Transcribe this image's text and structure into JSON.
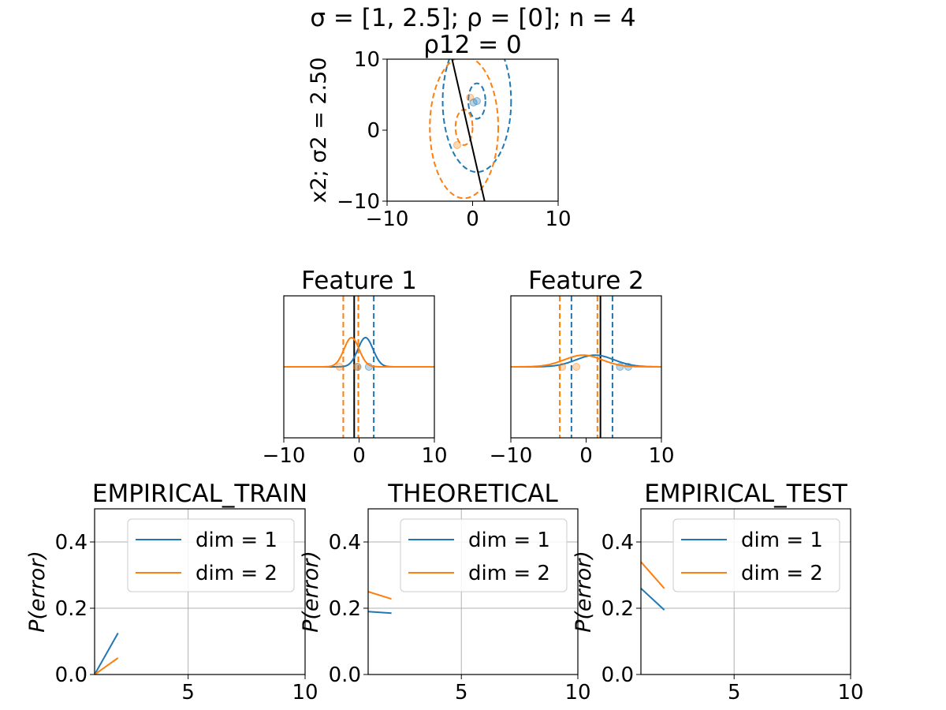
{
  "figure": {
    "suptitle": "σ = [1, 2.5]; ρ = [0]; n = 4",
    "background": "#ffffff"
  },
  "colors": {
    "class0": "#1f77b4",
    "class1": "#ff7f0e",
    "boundary": "#000000",
    "grid": "#b0b0b0"
  },
  "chart_data": [
    {
      "id": "scatter-2d",
      "type": "scatter",
      "title": "ρ12 = 0",
      "ylabel": "x2; σ2 = 2.50",
      "xlim": [
        -10,
        10
      ],
      "ylim": [
        -10,
        10
      ],
      "xticks": [
        "−10",
        "0",
        "10"
      ],
      "yticks": [
        "−10",
        "0",
        "10"
      ],
      "grid": false,
      "series": [
        {
          "class": 0,
          "points": [
            [
              0.1,
              3.9
            ],
            [
              0.5,
              4.1
            ]
          ],
          "mean": [
            0.5,
            4.1
          ],
          "sigma": [
            1,
            2.5
          ],
          "contours": [
            1,
            4
          ]
        },
        {
          "class": 1,
          "points": [
            [
              -0.3,
              4.6
            ],
            [
              -1.8,
              -2.1
            ]
          ],
          "mean": [
            -1.0,
            0.4
          ],
          "sigma": [
            1,
            2.5
          ],
          "contours": [
            1,
            4
          ]
        }
      ],
      "boundary": {
        "x": [
          -2.4,
          1.4
        ],
        "y": [
          10,
          -10
        ]
      }
    },
    {
      "id": "feature-1",
      "type": "line",
      "title": "Feature 1",
      "xlim": [
        -10,
        10
      ],
      "xticks": [
        "−10",
        "0",
        "10"
      ],
      "yticks": [],
      "series": [
        {
          "class": 0,
          "mean": 0.85,
          "sigma": 1.0,
          "interval": [
            -0.1,
            1.95
          ],
          "points": [
            -0.2,
            1.3
          ]
        },
        {
          "class": 1,
          "mean": -1.0,
          "sigma": 1.0,
          "interval": [
            -2.1,
            -0.1
          ],
          "points": [
            -2.6,
            -0.3
          ]
        }
      ],
      "boundary_x": -0.65
    },
    {
      "id": "feature-2",
      "type": "line",
      "title": "Feature 2",
      "xlim": [
        -10,
        10
      ],
      "xticks": [
        "−10",
        "0",
        "10"
      ],
      "yticks": [],
      "series": [
        {
          "class": 0,
          "mean": 1.2,
          "sigma": 2.5,
          "interval": [
            -1.95,
            3.5
          ],
          "points": [
            4.5,
            5.6
          ]
        },
        {
          "class": 1,
          "mean": -0.4,
          "sigma": 2.5,
          "interval": [
            -3.5,
            1.5
          ],
          "points": [
            -3.2,
            -1.3
          ]
        }
      ],
      "boundary_x": 1.9
    },
    {
      "id": "empirical-train",
      "type": "line",
      "title": "EMPIRICAL_TRAIN",
      "ylabel": "P(error)",
      "xlim": [
        1,
        10
      ],
      "ylim": [
        0,
        0.5
      ],
      "xticks": [
        "5",
        "10"
      ],
      "yticks": [
        "0.0",
        "0.2",
        "0.4"
      ],
      "grid": true,
      "legend": "upper right",
      "x": [
        1,
        2
      ],
      "series": [
        {
          "name": "dim = 1",
          "values": [
            0.0,
            0.125
          ]
        },
        {
          "name": "dim = 2",
          "values": [
            0.0,
            0.05
          ]
        }
      ]
    },
    {
      "id": "theoretical",
      "type": "line",
      "title": "THEORETICAL",
      "ylabel": "P(error)",
      "xlim": [
        1,
        10
      ],
      "ylim": [
        0,
        0.5
      ],
      "xticks": [
        "5",
        "10"
      ],
      "yticks": [
        "0.0",
        "0.2",
        "0.4"
      ],
      "grid": true,
      "legend": "upper right",
      "x": [
        1,
        2
      ],
      "series": [
        {
          "name": "dim = 1",
          "values": [
            0.19,
            0.185
          ]
        },
        {
          "name": "dim = 2",
          "values": [
            0.25,
            0.228
          ]
        }
      ]
    },
    {
      "id": "empirical-test",
      "type": "line",
      "title": "EMPIRICAL_TEST",
      "ylabel": "P(error)",
      "xlim": [
        1,
        10
      ],
      "ylim": [
        0,
        0.5
      ],
      "xticks": [
        "5",
        "10"
      ],
      "yticks": [
        "0.0",
        "0.2",
        "0.4"
      ],
      "grid": true,
      "legend": "upper right",
      "x": [
        1,
        2
      ],
      "series": [
        {
          "name": "dim = 1",
          "values": [
            0.26,
            0.195
          ]
        },
        {
          "name": "dim = 2",
          "values": [
            0.34,
            0.26
          ]
        }
      ]
    }
  ]
}
